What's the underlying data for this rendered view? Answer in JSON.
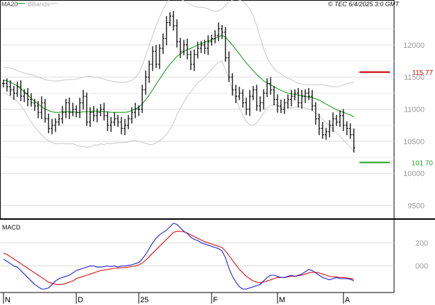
{
  "header": {
    "legend_ma": "MA20",
    "legend_bbands": "BBands",
    "timestamp": "© TEC 6/4/2025 3:0 GMT"
  },
  "colors": {
    "ma": "#2aa52a",
    "bbands": "#c8c8c8",
    "price": "#000000",
    "resistance": "#cc0000",
    "support": "#22a022",
    "macd": "#2020dd",
    "signal": "#dd1111",
    "grid": "#dcdcdc"
  },
  "chart_data": [
    {
      "type": "ohlc",
      "title": "",
      "y_axis": {
        "ticks": [
          9500,
          10000,
          10500,
          11000,
          11500,
          12000
        ],
        "tick_labels": [
          "9500",
          "10000",
          "10500",
          "11000",
          "11500",
          "12000"
        ],
        "ylim": [
          9300,
          12700
        ]
      },
      "x_axis": {
        "labels": [
          "N",
          "D",
          "25",
          "F",
          "M",
          "A"
        ],
        "label_positions": [
          0,
          21,
          39,
          60,
          79,
          98
        ],
        "n_bars": 102
      },
      "series": [
        {
          "name": "Price",
          "close": [
            11400,
            11350,
            11300,
            11250,
            11350,
            11200,
            11250,
            11150,
            11100,
            11050,
            10950,
            11100,
            10850,
            10700,
            10750,
            10800,
            10850,
            10950,
            11100,
            10950,
            11000,
            10950,
            11100,
            11200,
            10800,
            10950,
            10900,
            10950,
            11000,
            10900,
            10750,
            10800,
            10850,
            10800,
            10700,
            10750,
            10850,
            10950,
            11000,
            11000,
            11300,
            11500,
            11700,
            11900,
            11700,
            11950,
            12100,
            12350,
            12450,
            12300,
            12050,
            11900,
            12000,
            11850,
            11700,
            11850,
            11950,
            12000,
            11950,
            12050,
            12100,
            12150,
            12250,
            12200,
            11800,
            11500,
            11300,
            11200,
            11250,
            11100,
            11000,
            11200,
            11300,
            11050,
            11100,
            11250,
            11400,
            11300,
            11150,
            11050,
            11000,
            11100,
            11150,
            11200,
            11250,
            11100,
            11200,
            11250,
            11200,
            11050,
            10850,
            10700,
            10600,
            10650,
            10750,
            10850,
            10800,
            10900,
            10750,
            10700,
            10600,
            10400
          ],
          "low_estimates_note": ""
        },
        {
          "name": "MA20",
          "values": [
            11450,
            11440,
            11420,
            11390,
            11360,
            11320,
            11270,
            11220,
            11170,
            11120,
            11080,
            11040,
            11000,
            10980,
            10960,
            10950,
            10950,
            10960,
            10960,
            10960,
            10960,
            10950,
            10950,
            10960,
            10960,
            10960,
            10970,
            10970,
            10970,
            10960,
            10960,
            10950,
            10950,
            10950,
            10950,
            10950,
            10960,
            10980,
            11000,
            11030,
            11080,
            11150,
            11220,
            11300,
            11390,
            11470,
            11550,
            11630,
            11700,
            11760,
            11820,
            11860,
            11900,
            11930,
            11950,
            11970,
            12000,
            12020,
            12040,
            12060,
            12080,
            12100,
            12130,
            12150,
            12120,
            12060,
            12000,
            11930,
            11860,
            11790,
            11720,
            11660,
            11600,
            11540,
            11490,
            11440,
            11410,
            11380,
            11350,
            11320,
            11290,
            11270,
            11250,
            11240,
            11230,
            11220,
            11210,
            11200,
            11190,
            11180,
            11160,
            11140,
            11110,
            11080,
            11050,
            11020,
            10990,
            10970,
            10950,
            10930,
            10910,
            10880
          ]
        },
        {
          "name": "BBands",
          "upper": [
            11650,
            11650,
            11640,
            11620,
            11600,
            11580,
            11560,
            11550,
            11540,
            11520,
            11500,
            11480,
            11460,
            11450,
            11440,
            11440,
            11440,
            11450,
            11460,
            11460,
            11460,
            11470,
            11480,
            11500,
            11510,
            11510,
            11500,
            11500,
            11480,
            11470,
            11450,
            11440,
            11430,
            11420,
            11420,
            11420,
            11430,
            11450,
            11490,
            11560,
            11680,
            11830,
            11990,
            12150,
            12300,
            12430,
            12550,
            12650,
            12720,
            12740,
            12730,
            12710,
            12690,
            12660,
            12630,
            12600,
            12590,
            12590,
            12580,
            12560,
            12540,
            12520,
            12530,
            12560,
            12620,
            12670,
            12700,
            12710,
            12700,
            12680,
            12630,
            12560,
            12450,
            12300,
            12120,
            11940,
            11800,
            11700,
            11630,
            11580,
            11550,
            11510,
            11480,
            11460,
            11430,
            11400,
            11390,
            11380,
            11380,
            11380,
            11380,
            11380,
            11380,
            11370,
            11360,
            11350,
            11350,
            11360,
            11380,
            11400,
            11410,
            11420
          ],
          "lower": [
            11250,
            11230,
            11200,
            11160,
            11120,
            11060,
            10980,
            10890,
            10800,
            10720,
            10660,
            10600,
            10540,
            10510,
            10480,
            10460,
            10460,
            10470,
            10460,
            10460,
            10460,
            10440,
            10420,
            10420,
            10410,
            10410,
            10440,
            10440,
            10460,
            10450,
            10470,
            10460,
            10470,
            10480,
            10480,
            10480,
            10490,
            10510,
            10510,
            10500,
            10480,
            10470,
            10450,
            10450,
            10480,
            10510,
            10550,
            10610,
            10680,
            10780,
            10910,
            11010,
            11110,
            11200,
            11270,
            11340,
            11410,
            11450,
            11500,
            11560,
            11620,
            11680,
            11730,
            11740,
            11620,
            11450,
            11300,
            11150,
            11020,
            10900,
            10810,
            10760,
            10750,
            10780,
            10860,
            10940,
            11020,
            11060,
            11070,
            11060,
            11030,
            11030,
            11020,
            11020,
            11030,
            11040,
            11030,
            11020,
            11000,
            10980,
            10940,
            10900,
            10840,
            10790,
            10740,
            10690,
            10630,
            10580,
            10520,
            10460,
            10410,
            10340
          ]
        }
      ],
      "annotations": [
        {
          "label": "115 77",
          "value": 11577,
          "kind": "resistance"
        },
        {
          "label": "101 70",
          "value": 10170,
          "kind": "support"
        }
      ]
    },
    {
      "type": "line",
      "title": "MACD",
      "y_axis": {
        "ticks": [
          0,
          200
        ],
        "tick_labels": [
          "000",
          "200"
        ],
        "ylim": [
          -230,
          400
        ]
      },
      "series": [
        {
          "name": "MACD",
          "values": [
            60,
            40,
            20,
            0,
            -10,
            -40,
            -70,
            -100,
            -130,
            -160,
            -180,
            -200,
            -200,
            -190,
            -160,
            -130,
            -110,
            -100,
            -90,
            -80,
            -60,
            -40,
            -30,
            -20,
            -10,
            0,
            0,
            -10,
            -10,
            -5,
            0,
            -5,
            0,
            -10,
            0,
            0,
            5,
            10,
            20,
            30,
            60,
            100,
            150,
            200,
            240,
            270,
            290,
            310,
            340,
            370,
            360,
            330,
            300,
            280,
            250,
            230,
            220,
            200,
            190,
            180,
            170,
            160,
            150,
            130,
            70,
            -20,
            -90,
            -140,
            -180,
            -200,
            -200,
            -190,
            -180,
            -170,
            -160,
            -130,
            -100,
            -80,
            -80,
            -90,
            -100,
            -100,
            -90,
            -80,
            -90,
            -80,
            -70,
            -50,
            -30,
            -40,
            -60,
            -80,
            -100,
            -110,
            -120,
            -110,
            -100,
            -110,
            -110,
            -110,
            -115,
            -130
          ]
        },
        {
          "name": "Signal",
          "values": [
            110,
            100,
            80,
            60,
            40,
            20,
            0,
            -20,
            -40,
            -60,
            -80,
            -100,
            -120,
            -140,
            -150,
            -160,
            -160,
            -160,
            -150,
            -140,
            -130,
            -110,
            -100,
            -90,
            -80,
            -70,
            -60,
            -50,
            -40,
            -35,
            -30,
            -25,
            -20,
            -20,
            -15,
            -15,
            -10,
            -5,
            0,
            10,
            25,
            50,
            80,
            110,
            140,
            170,
            200,
            230,
            260,
            290,
            300,
            300,
            295,
            285,
            270,
            255,
            240,
            225,
            210,
            200,
            190,
            180,
            170,
            160,
            130,
            90,
            50,
            10,
            -30,
            -60,
            -90,
            -110,
            -130,
            -140,
            -145,
            -140,
            -130,
            -120,
            -110,
            -100,
            -100,
            -100,
            -95,
            -90,
            -90,
            -85,
            -80,
            -70,
            -60,
            -55,
            -55,
            -60,
            -70,
            -80,
            -90,
            -95,
            -95,
            -100,
            -100,
            -105,
            -108,
            -115
          ]
        }
      ]
    }
  ]
}
